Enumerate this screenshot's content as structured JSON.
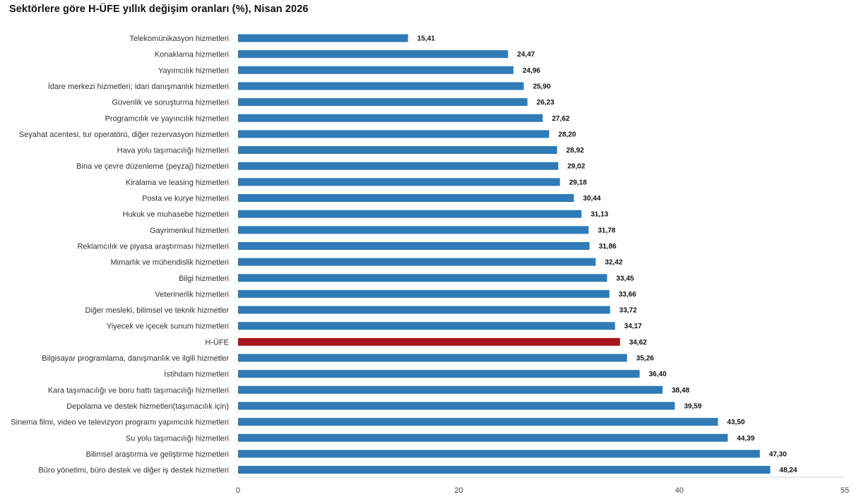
{
  "chart_data": {
    "type": "bar",
    "orientation": "horizontal",
    "title": "Sektörlere göre H-ÜFE yıllık değişim oranları (%), Nisan 2026",
    "categories": [
      "Telekomünikasyon hizmetleri",
      "Konaklama hizmetleri",
      "Yayımcılık hizmetleri",
      "İdare merkezi hizmetleri; idari danışmanlık hizmetleri",
      "Güvenlik ve soruşturma hizmetleri",
      "Programcılık ve yayıncılık hizmetleri",
      "Seyahat acentesi, tur operatörü, diğer rezervasyon hizmetleri",
      "Hava yolu taşımacılığı hizmetleri",
      "Bina ve çevre düzenleme (peyzaj) hizmetleri",
      "Kiralama ve leasing hizmetleri",
      "Posta ve kurye hizmetleri",
      "Hukuk ve muhasebe hizmetleri",
      "Gayrimenkul hizmetleri",
      "Reklamcılık ve piyasa araştırması hizmetleri",
      "Mimarlık ve mühendislik hizmetleri",
      "Bilgi hizmetleri",
      "Veterinerlik hizmetleri",
      "Diğer mesleki, bilimsel ve teknik hizmetler",
      "Yiyecek ve içecek sunum hizmetleri",
      "H-ÜFE",
      "Bilgisayar programlama, danışmanlık ve ilgili hizmetler",
      "İstihdam hizmetleri",
      "Kara taşımacılığı ve boru hattı taşımacılığı hizmetleri",
      "Depolama ve destek hizmetleri(taşımacılık için)",
      "Sinema filmi, video ve televizyon programı yapımcılık hizmetleri",
      "Su yolu taşımacılığı hizmetleri",
      "Bilimsel araştırma ve geliştirme hizmetleri",
      "Büro yönetimi, büro destek ve diğer iş destek hizmetleri"
    ],
    "values": [
      15.41,
      24.47,
      24.96,
      25.9,
      26.23,
      27.62,
      28.2,
      28.92,
      29.02,
      29.18,
      30.44,
      31.13,
      31.78,
      31.86,
      32.42,
      33.45,
      33.66,
      33.72,
      34.17,
      34.62,
      35.26,
      36.4,
      38.48,
      39.59,
      43.5,
      44.39,
      47.3,
      48.24
    ],
    "value_labels": [
      "15,41",
      "24,47",
      "24,96",
      "25,90",
      "26,23",
      "27,62",
      "28,20",
      "28,92",
      "29,02",
      "29,18",
      "30,44",
      "31,13",
      "31,78",
      "31,86",
      "32,42",
      "33,45",
      "33,66",
      "33,72",
      "34,17",
      "34,62",
      "35,26",
      "36,40",
      "38,48",
      "39,59",
      "43,50",
      "44,39",
      "47,30",
      "48,24"
    ],
    "highlight_category": "H-ÜFE",
    "xlim": [
      0,
      55
    ],
    "x_ticks": [
      0,
      20,
      40,
      55
    ],
    "x_tick_labels": [
      "0",
      "20",
      "40",
      "55"
    ],
    "grid": false,
    "colors": {
      "bar": "#2e7bb8",
      "highlight": "#a8161b"
    }
  }
}
